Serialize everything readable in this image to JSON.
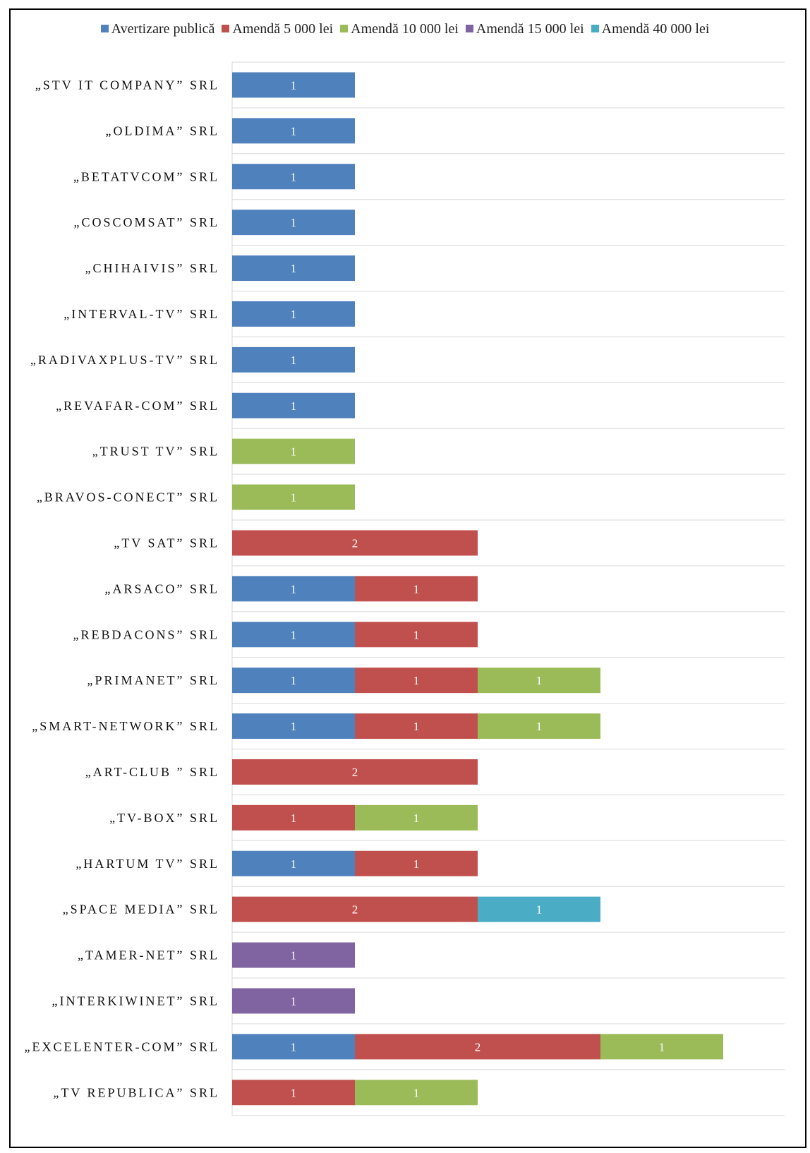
{
  "chart_data": {
    "type": "bar",
    "orientation": "horizontal",
    "stacked": true,
    "categories": [
      "„STV IT COMPANY” SRL",
      "„OLDIMA” SRL",
      "„BETATVCOM” SRL",
      "„COSCOMSAT” SRL",
      "„CHIHAIVIS” SRL",
      "„INTERVAL-TV” SRL",
      "„RADIVAXPLUS-TV” SRL",
      "„REVAFAR-COM” SRL",
      "„TRUST TV” SRL",
      "„BRAVOS-CONECT” SRL",
      "„TV SAT” SRL",
      "„ARSACO” SRL",
      "„REBDACONS” SRL",
      "„PRIMANET” SRL",
      "„SMART-NETWORK” SRL",
      "„ART-CLUB ” SRL",
      "„TV-BOX” SRL",
      "„HARTUM TV” SRL",
      "„SPACE MEDIA” SRL",
      "„TAMER-NET” SRL",
      "„INTERKIWINET” SRL",
      "„EXCELENTER-COM” SRL",
      "„TV REPUBLICA” SRL"
    ],
    "series": [
      {
        "name": "Avertizare publică",
        "color": "#4F81BD",
        "values": [
          1,
          1,
          1,
          1,
          1,
          1,
          1,
          1,
          0,
          0,
          0,
          1,
          1,
          1,
          1,
          0,
          0,
          1,
          0,
          0,
          0,
          1,
          0
        ]
      },
      {
        "name": "Amendă 5 000 lei",
        "color": "#C0504D",
        "values": [
          0,
          0,
          0,
          0,
          0,
          0,
          0,
          0,
          0,
          0,
          2,
          1,
          1,
          1,
          1,
          2,
          1,
          1,
          2,
          0,
          0,
          2,
          1
        ]
      },
      {
        "name": "Amendă 10 000 lei",
        "color": "#9BBB59",
        "values": [
          0,
          0,
          0,
          0,
          0,
          0,
          0,
          0,
          1,
          1,
          0,
          0,
          0,
          1,
          1,
          0,
          1,
          0,
          0,
          0,
          0,
          1,
          1
        ]
      },
      {
        "name": "Amendă 15 000 lei",
        "color": "#8064A2",
        "values": [
          0,
          0,
          0,
          0,
          0,
          0,
          0,
          0,
          0,
          0,
          0,
          0,
          0,
          0,
          0,
          0,
          0,
          0,
          0,
          1,
          1,
          0,
          0
        ]
      },
      {
        "name": "Amendă 40 000 lei",
        "color": "#4BACC6",
        "values": [
          0,
          0,
          0,
          0,
          0,
          0,
          0,
          0,
          0,
          0,
          0,
          0,
          0,
          0,
          0,
          0,
          0,
          0,
          1,
          0,
          0,
          0,
          0
        ]
      }
    ],
    "xlim": [
      0,
      4.5
    ],
    "legend_position": "top",
    "grid": "horizontal",
    "data_labels": true
  }
}
